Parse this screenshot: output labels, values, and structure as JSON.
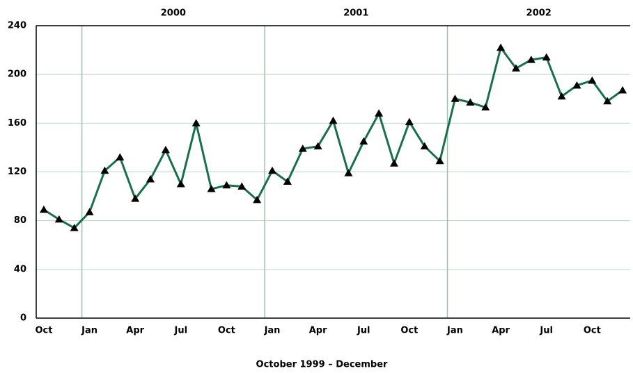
{
  "chart_data": {
    "type": "line",
    "x_label": "October 1999 – December",
    "year_labels": [
      "2000",
      "2001",
      "2002"
    ],
    "categories": [
      "Oct",
      null,
      null,
      "Jan",
      null,
      null,
      "Apr",
      null,
      null,
      "Jul",
      null,
      null,
      "Oct",
      null,
      null,
      "Jan",
      null,
      null,
      "Apr",
      null,
      null,
      "Jul",
      null,
      null,
      "Oct",
      null,
      null,
      "Jan",
      null,
      null,
      "Apr",
      null,
      null,
      "Jul",
      null,
      null,
      "Oct",
      null,
      null
    ],
    "values": [
      89,
      81,
      74,
      87,
      121,
      132,
      98,
      114,
      138,
      110,
      160,
      106,
      109,
      108,
      97,
      121,
      112,
      139,
      141,
      162,
      119,
      145,
      168,
      127,
      161,
      141,
      129,
      180,
      177,
      173,
      222,
      205,
      212,
      214,
      182,
      191,
      195,
      178,
      187
    ],
    "color": "#17704a",
    "marker_color": "#000000",
    "ylim": [
      0,
      240
    ],
    "yticks": [
      0,
      40,
      80,
      120,
      160,
      200,
      240
    ],
    "grid": true
  }
}
